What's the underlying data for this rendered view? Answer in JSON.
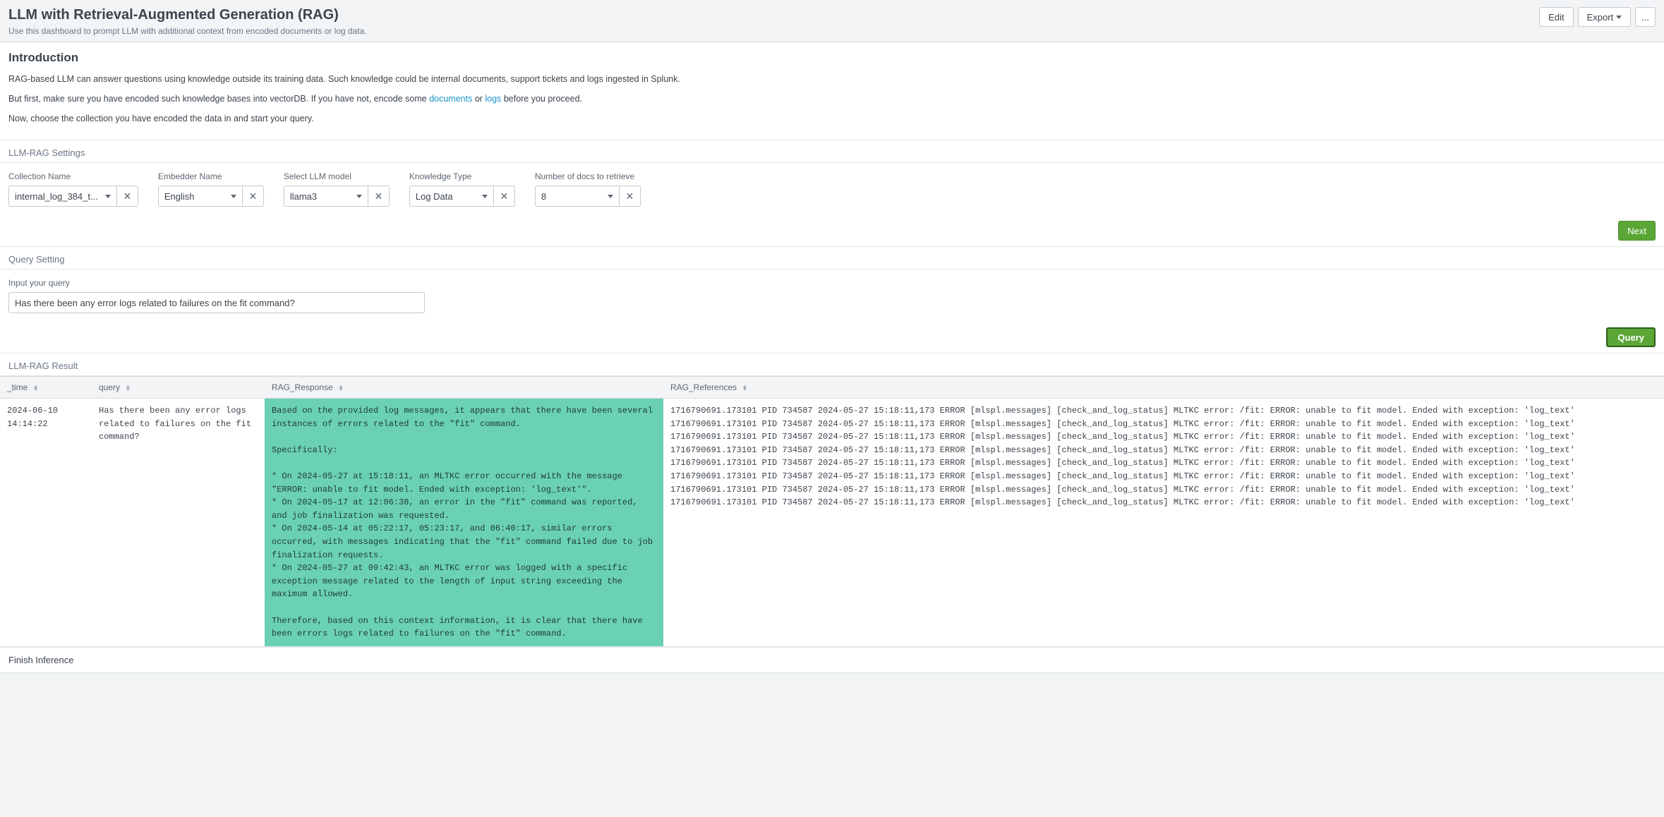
{
  "header": {
    "title": "LLM with Retrieval-Augmented Generation (RAG)",
    "subtitle": "Use this dashboard to prompt LLM with additional context from encoded documents or log data.",
    "edit": "Edit",
    "export": "Export",
    "more": "..."
  },
  "intro": {
    "heading": "Introduction",
    "p1": "RAG-based LLM can answer questions using knowledge outside its training data. Such knowledge could be internal documents, support tickets and logs ingested in Splunk.",
    "p2a": "But first, make sure you have encoded such knowledge bases into vectorDB. If you have not, encode some ",
    "link_documents": "documents",
    "p2b": " or ",
    "link_logs": "logs",
    "p2c": " before you proceed.",
    "p3": "Now, choose the collection you have encoded the data in and start your query."
  },
  "settings": {
    "heading": "LLM-RAG Settings",
    "collection_label": "Collection Name",
    "collection_value": "internal_log_384_t...",
    "embedder_label": "Embedder Name",
    "embedder_value": "English",
    "model_label": "Select LLM model",
    "model_value": "llama3",
    "knowledge_label": "Knowledge Type",
    "knowledge_value": "Log Data",
    "numdocs_label": "Number of docs to retrieve",
    "numdocs_value": "8",
    "next": "Next"
  },
  "query": {
    "heading": "Query Setting",
    "label": "Input your query",
    "value": "Has there been any error logs related to failures on the fit command?",
    "button": "Query"
  },
  "result": {
    "heading": "LLM-RAG Result",
    "columns": {
      "time": "_time",
      "query": "query",
      "response": "RAG_Response",
      "references": "RAG_References"
    },
    "rows": [
      {
        "time": "2024-06-10 14:14:22",
        "query": "Has there been any error logs related to failures on the fit command?",
        "response": "Based on the provided log messages, it appears that there have been several instances of errors related to the \"fit\" command.\n\nSpecifically:\n\n* On 2024-05-27 at 15:18:11, an MLTKC error occurred with the message \"ERROR: unable to fit model. Ended with exception: 'log_text'\".\n* On 2024-05-17 at 12:06:38, an error in the \"fit\" command was reported, and job finalization was requested.\n* On 2024-05-14 at 05:22:17, 05:23:17, and 06:40:17, similar errors occurred, with messages indicating that the \"fit\" command failed due to job finalization requests.\n* On 2024-05-27 at 09:42:43, an MLTKC error was logged with a specific exception message related to the length of input string exceeding the maximum allowed.\n\nTherefore, based on this context information, it is clear that there have been errors logs related to failures on the \"fit\" command.",
        "references": "1716790691.173101 PID 734587 2024-05-27 15:18:11,173 ERROR [mlspl.messages] [check_and_log_status] MLTKC error: /fit: ERROR: unable to fit model. Ended with exception: 'log_text'\n1716790691.173101 PID 734587 2024-05-27 15:18:11,173 ERROR [mlspl.messages] [check_and_log_status] MLTKC error: /fit: ERROR: unable to fit model. Ended with exception: 'log_text'\n1716790691.173101 PID 734587 2024-05-27 15:18:11,173 ERROR [mlspl.messages] [check_and_log_status] MLTKC error: /fit: ERROR: unable to fit model. Ended with exception: 'log_text'\n1716790691.173101 PID 734587 2024-05-27 15:18:11,173 ERROR [mlspl.messages] [check_and_log_status] MLTKC error: /fit: ERROR: unable to fit model. Ended with exception: 'log_text'\n1716790691.173101 PID 734587 2024-05-27 15:18:11,173 ERROR [mlspl.messages] [check_and_log_status] MLTKC error: /fit: ERROR: unable to fit model. Ended with exception: 'log_text'\n1716790691.173101 PID 734587 2024-05-27 15:18:11,173 ERROR [mlspl.messages] [check_and_log_status] MLTKC error: /fit: ERROR: unable to fit model. Ended with exception: 'log_text'\n1716790691.173101 PID 734587 2024-05-27 15:18:11,173 ERROR [mlspl.messages] [check_and_log_status] MLTKC error: /fit: ERROR: unable to fit model. Ended with exception: 'log_text'\n1716790691.173101 PID 734587 2024-05-27 15:18:11,173 ERROR [mlspl.messages] [check_and_log_status] MLTKC error: /fit: ERROR: unable to fit model. Ended with exception: 'log_text'"
      }
    ],
    "finish": "Finish Inference"
  },
  "colors": {
    "accent_green": "#5aa636",
    "response_bg": "#6bd1b4"
  }
}
